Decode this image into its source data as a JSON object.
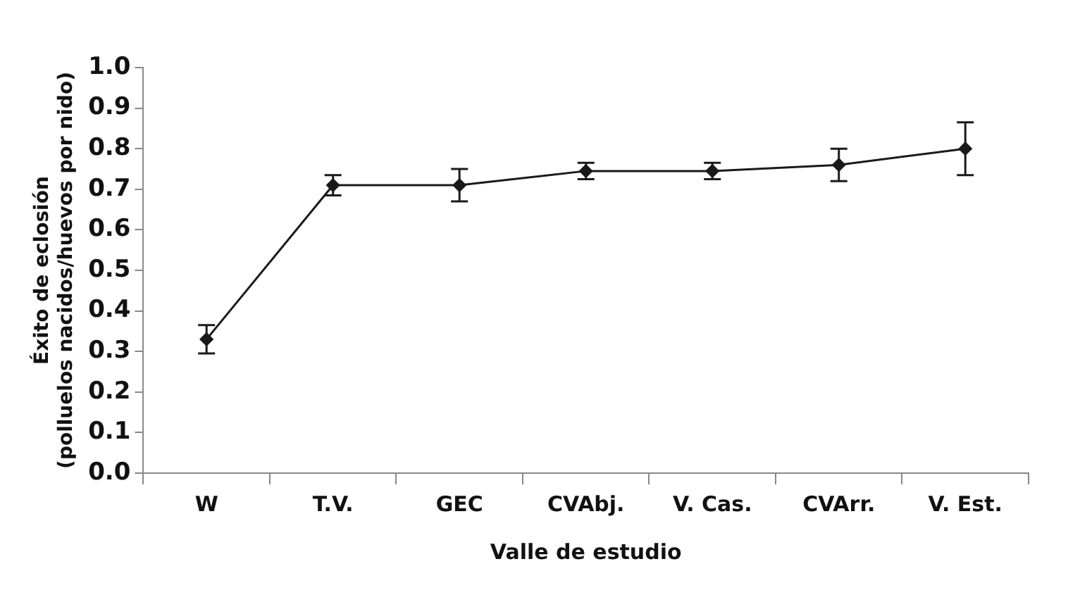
{
  "chart_data": {
    "type": "line",
    "xlabel": "Valle de estudio",
    "ylabel": "Éxito de eclosión\n(polluelos nacidos/huevos por nido)",
    "categories": [
      "W",
      "T.V.",
      "GEC",
      "CVAbj.",
      "V. Cas.",
      "CVArr.",
      "V. Est."
    ],
    "series": [
      {
        "color": "#1a1a1a",
        "values": [
          0.33,
          0.71,
          0.71,
          0.745,
          0.745,
          0.76,
          0.8
        ],
        "errors": [
          0.035,
          0.025,
          0.04,
          0.02,
          0.02,
          0.04,
          0.065
        ]
      }
    ],
    "ylim": [
      0,
      1
    ],
    "yticks": [
      {
        "value": 0,
        "label": "0.0"
      },
      0.1,
      0.2,
      0.3,
      0.4,
      0.5,
      0.6,
      0.7,
      0.8,
      0.9,
      {
        "value": 1,
        "label": "1.0"
      }
    ],
    "grid": false,
    "legend": false,
    "marker": "diamond",
    "line_style": "solid"
  }
}
